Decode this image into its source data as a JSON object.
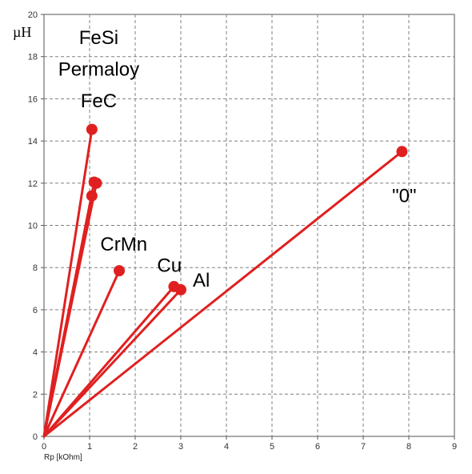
{
  "chart_data": {
    "type": "line",
    "title": "",
    "xlabel": "Rp [kOhm]",
    "ylabel": "µH",
    "xlim": [
      0,
      9
    ],
    "ylim": [
      0,
      20
    ],
    "x_ticks": [
      0,
      1,
      2,
      3,
      4,
      5,
      6,
      7,
      8,
      9
    ],
    "y_ticks": [
      0,
      2,
      4,
      6,
      8,
      10,
      12,
      14,
      16,
      18,
      20
    ],
    "grid": true,
    "origin": [
      0,
      0
    ],
    "series_color": "#e02020",
    "points": [
      {
        "x": 1.05,
        "y": 14.55
      },
      {
        "x": 1.1,
        "y": 12.05
      },
      {
        "x": 1.15,
        "y": 12.0
      },
      {
        "x": 1.05,
        "y": 11.4
      },
      {
        "x": 1.65,
        "y": 7.85
      },
      {
        "x": 2.85,
        "y": 7.1
      },
      {
        "x": 3.0,
        "y": 6.95
      },
      {
        "x": 7.85,
        "y": 13.5
      }
    ],
    "annotations": [
      {
        "text": "FeSi",
        "x": 1.2,
        "y": 18.6
      },
      {
        "text": "Permaloy",
        "x": 1.2,
        "y": 17.1
      },
      {
        "text": "FeC",
        "x": 1.2,
        "y": 15.6
      },
      {
        "text": "CrMn",
        "x": 1.75,
        "y": 8.8
      },
      {
        "text": "Cu",
        "x": 2.75,
        "y": 7.8
      },
      {
        "text": "Al",
        "x": 3.45,
        "y": 7.1
      },
      {
        "text": "\"0\"",
        "x": 7.9,
        "y": 11.1
      }
    ]
  }
}
